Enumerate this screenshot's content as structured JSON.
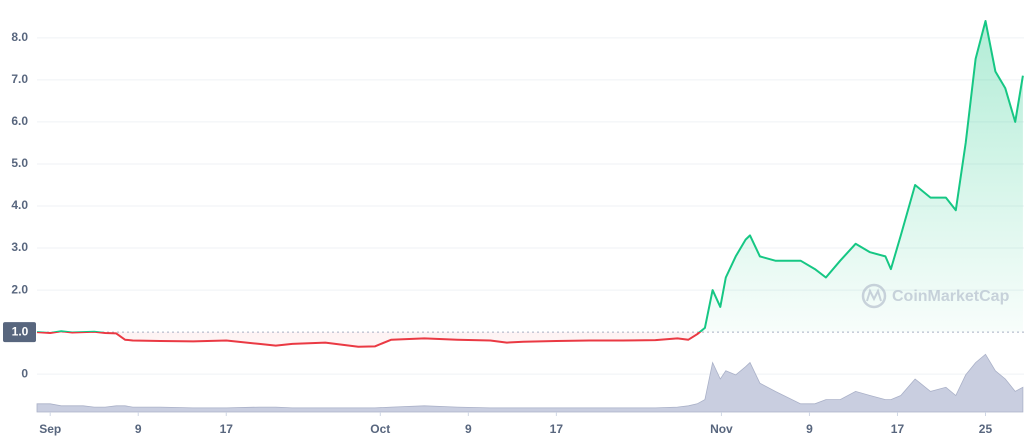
{
  "chart_data": {
    "type": "line",
    "watermark": "CoinMarketCap",
    "baseline": {
      "value": 1,
      "label": "1.0"
    },
    "x": [
      -1.2,
      0,
      1,
      2,
      3,
      4,
      5,
      6,
      6.8,
      7.5,
      10,
      13,
      16,
      19,
      20.5,
      22,
      25,
      28,
      29.5,
      31,
      34,
      37,
      40,
      41.5,
      43,
      46,
      49,
      52,
      55,
      57,
      58,
      58.8,
      59.5,
      60.2,
      60.9,
      61.4,
      62.3,
      63.2,
      63.6,
      64.5,
      65.9,
      68.2,
      69.5,
      70.5,
      71.8,
      73.2,
      74.5,
      75.9,
      76.4,
      77.3,
      78.6,
      80,
      81.4,
      82.3,
      83.2,
      84.1,
      85,
      85.9,
      86.8,
      87.7,
      88.4
    ],
    "series": [
      {
        "name": "Price",
        "color_up": "#16c784",
        "color_down": "#ea3943",
        "values": [
          1.0,
          0.98,
          1.02,
          0.99,
          1.0,
          1.01,
          0.98,
          0.97,
          0.82,
          0.8,
          0.79,
          0.78,
          0.8,
          0.72,
          0.68,
          0.72,
          0.75,
          0.65,
          0.66,
          0.82,
          0.85,
          0.82,
          0.8,
          0.75,
          0.77,
          0.79,
          0.8,
          0.8,
          0.81,
          0.85,
          0.82,
          0.95,
          1.1,
          2.0,
          1.6,
          2.3,
          2.8,
          3.2,
          3.3,
          2.8,
          2.7,
          2.7,
          2.5,
          2.3,
          2.7,
          3.1,
          2.9,
          2.8,
          2.5,
          3.3,
          4.5,
          4.2,
          4.2,
          3.9,
          5.5,
          7.5,
          8.4,
          7.2,
          6.8,
          6.0,
          7.1
        ]
      },
      {
        "name": "Volume",
        "color": "#c9cee0",
        "axis": "y2",
        "values": [
          2,
          2,
          1.5,
          1.5,
          1.5,
          1.2,
          1.2,
          1.5,
          1.5,
          1.2,
          1.2,
          1,
          1,
          1.2,
          1.2,
          1,
          1,
          1,
          1,
          1.2,
          1.5,
          1.2,
          1,
          1,
          1,
          1,
          1,
          1,
          1,
          1.2,
          1.5,
          2,
          3,
          12,
          8,
          10,
          9,
          11,
          12,
          7,
          5,
          2,
          2,
          3,
          3,
          5,
          4,
          3,
          3,
          4,
          8,
          5,
          6,
          4,
          9,
          12,
          14,
          10,
          8,
          5,
          6
        ]
      }
    ],
    "xlim": [
      -1.2,
      88.5
    ],
    "xticks": [
      {
        "value": 0,
        "label": "Sep"
      },
      {
        "value": 8,
        "label": "9"
      },
      {
        "value": 16,
        "label": "17"
      },
      {
        "value": 30,
        "label": "Oct"
      },
      {
        "value": 38,
        "label": "9"
      },
      {
        "value": 46,
        "label": "17"
      },
      {
        "value": 61,
        "label": "Nov"
      },
      {
        "value": 69,
        "label": "9"
      },
      {
        "value": 77,
        "label": "17"
      },
      {
        "value": 85,
        "label": "25"
      }
    ],
    "ylim": [
      -0.9,
      8.9
    ],
    "yticks": [
      0,
      {
        "value": 2,
        "label": "2.0"
      },
      {
        "value": 3,
        "label": "3.0"
      },
      {
        "value": 4,
        "label": "4.0"
      },
      {
        "value": 5,
        "label": "5.0"
      },
      {
        "value": 6,
        "label": "6.0"
      },
      {
        "value": 7,
        "label": "7.0"
      },
      {
        "value": 8,
        "label": "8.0"
      }
    ],
    "y2lim": [
      0,
      100
    ],
    "grid": true
  }
}
